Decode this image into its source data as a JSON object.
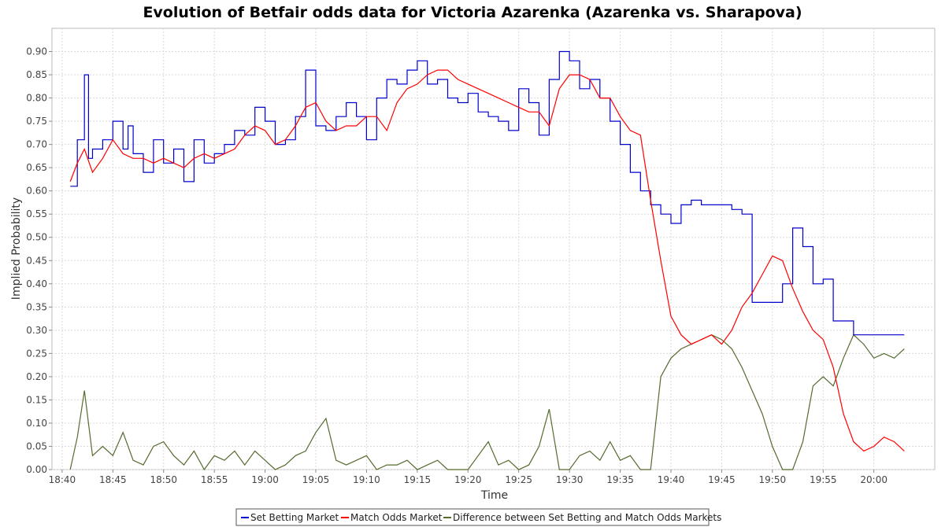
{
  "chart_data": {
    "type": "line",
    "title": "Evolution of Betfair odds data for Victoria Azarenka (Azarenka vs. Sharapova)",
    "xlabel": "Time",
    "ylabel": "Implied Probability",
    "x_ticks": [
      "18:40",
      "18:45",
      "18:50",
      "18:55",
      "19:00",
      "19:05",
      "19:10",
      "19:15",
      "19:20",
      "19:25",
      "19:30",
      "19:35",
      "19:40",
      "19:45",
      "19:50",
      "19:55",
      "20:00"
    ],
    "x_range_minutes": [
      -1.0,
      86.0
    ],
    "ylim": [
      0.0,
      0.95
    ],
    "y_ticks": [
      0.0,
      0.05,
      0.1,
      0.15,
      0.2,
      0.25,
      0.3,
      0.35,
      0.4,
      0.45,
      0.5,
      0.55,
      0.6,
      0.65,
      0.7,
      0.75,
      0.8,
      0.85,
      0.9
    ],
    "grid": true,
    "legend_position": "bottom",
    "series": [
      {
        "name": "Set Betting Market",
        "color": "#0000cc",
        "step": true,
        "x": [
          0.8,
          1.5,
          2.2,
          2.6,
          3,
          4,
          5,
          6,
          6.5,
          7,
          8,
          9,
          10,
          11,
          12,
          13,
          14,
          15,
          16,
          17,
          18,
          19,
          20,
          21,
          22,
          23,
          24,
          25,
          26,
          27,
          28,
          29,
          30,
          31,
          32,
          33,
          34,
          35,
          36,
          37,
          38,
          39,
          40,
          41,
          42,
          43,
          44,
          45,
          46,
          47,
          48,
          49,
          50,
          51,
          52,
          53,
          54,
          55,
          56,
          57,
          58,
          59,
          60,
          61,
          62,
          63,
          64,
          65,
          66,
          67,
          68,
          69,
          70,
          71,
          72,
          73,
          74,
          75,
          76,
          77,
          78,
          79,
          80,
          81,
          82,
          83
        ],
        "y": [
          0.61,
          0.71,
          0.85,
          0.67,
          0.69,
          0.71,
          0.75,
          0.69,
          0.74,
          0.68,
          0.64,
          0.71,
          0.66,
          0.69,
          0.62,
          0.71,
          0.66,
          0.68,
          0.7,
          0.73,
          0.72,
          0.78,
          0.75,
          0.7,
          0.71,
          0.76,
          0.86,
          0.74,
          0.73,
          0.76,
          0.79,
          0.76,
          0.71,
          0.8,
          0.84,
          0.83,
          0.86,
          0.88,
          0.83,
          0.84,
          0.8,
          0.79,
          0.81,
          0.77,
          0.76,
          0.75,
          0.73,
          0.82,
          0.79,
          0.72,
          0.84,
          0.9,
          0.88,
          0.82,
          0.84,
          0.8,
          0.75,
          0.7,
          0.64,
          0.6,
          0.57,
          0.55,
          0.53,
          0.57,
          0.58,
          0.57,
          0.57,
          0.57,
          0.56,
          0.55,
          0.36,
          0.36,
          0.36,
          0.4,
          0.52,
          0.48,
          0.4,
          0.41,
          0.32,
          0.32,
          0.29,
          0.29,
          0.29,
          0.29,
          0.29,
          0.29
        ]
      },
      {
        "name": "Match Odds Market",
        "color": "#ff0000",
        "step": false,
        "x": [
          0.8,
          1.5,
          2.2,
          3,
          4,
          5,
          6,
          7,
          8,
          9,
          10,
          11,
          12,
          13,
          14,
          15,
          16,
          17,
          18,
          19,
          20,
          21,
          22,
          23,
          24,
          25,
          26,
          27,
          28,
          29,
          30,
          31,
          32,
          33,
          34,
          35,
          36,
          37,
          38,
          39,
          40,
          41,
          42,
          43,
          44,
          45,
          46,
          47,
          48,
          49,
          50,
          51,
          52,
          53,
          54,
          55,
          56,
          57,
          58,
          59,
          60,
          61,
          62,
          63,
          64,
          65,
          66,
          67,
          68,
          69,
          70,
          71,
          72,
          73,
          74,
          75,
          76,
          77,
          78,
          79,
          80,
          81,
          82,
          83
        ],
        "y": [
          0.62,
          0.66,
          0.69,
          0.64,
          0.67,
          0.71,
          0.68,
          0.67,
          0.67,
          0.66,
          0.67,
          0.66,
          0.65,
          0.67,
          0.68,
          0.67,
          0.68,
          0.69,
          0.72,
          0.74,
          0.73,
          0.7,
          0.71,
          0.74,
          0.78,
          0.79,
          0.75,
          0.73,
          0.74,
          0.74,
          0.76,
          0.76,
          0.73,
          0.79,
          0.82,
          0.83,
          0.85,
          0.86,
          0.86,
          0.84,
          0.83,
          0.82,
          0.81,
          0.8,
          0.79,
          0.78,
          0.77,
          0.77,
          0.74,
          0.82,
          0.85,
          0.85,
          0.84,
          0.8,
          0.8,
          0.76,
          0.73,
          0.72,
          0.58,
          0.45,
          0.33,
          0.29,
          0.27,
          0.28,
          0.29,
          0.27,
          0.3,
          0.35,
          0.38,
          0.42,
          0.46,
          0.45,
          0.39,
          0.34,
          0.3,
          0.28,
          0.22,
          0.12,
          0.06,
          0.04,
          0.05,
          0.07,
          0.06,
          0.04
        ]
      },
      {
        "name": "Difference between Set Betting and Match Odds Markets",
        "color": "#556b2f",
        "step": false,
        "x": [
          0.8,
          1.5,
          2.2,
          3,
          4,
          5,
          6,
          7,
          8,
          9,
          10,
          11,
          12,
          13,
          14,
          15,
          16,
          17,
          18,
          19,
          20,
          21,
          22,
          23,
          24,
          25,
          26,
          27,
          28,
          29,
          30,
          31,
          32,
          33,
          34,
          35,
          36,
          37,
          38,
          39,
          40,
          41,
          42,
          43,
          44,
          45,
          46,
          47,
          48,
          49,
          50,
          51,
          52,
          53,
          54,
          55,
          56,
          57,
          58,
          59,
          60,
          61,
          62,
          63,
          64,
          65,
          66,
          67,
          68,
          69,
          70,
          71,
          72,
          73,
          74,
          75,
          76,
          77,
          78,
          79,
          80,
          81,
          82,
          83
        ],
        "y": [
          0.0,
          0.07,
          0.17,
          0.03,
          0.05,
          0.03,
          0.08,
          0.02,
          0.01,
          0.05,
          0.06,
          0.03,
          0.01,
          0.04,
          0.0,
          0.03,
          0.02,
          0.04,
          0.01,
          0.04,
          0.02,
          0.0,
          0.01,
          0.03,
          0.04,
          0.08,
          0.11,
          0.02,
          0.01,
          0.02,
          0.03,
          0.0,
          0.01,
          0.01,
          0.02,
          0.0,
          0.01,
          0.02,
          0.0,
          0.0,
          0.0,
          0.03,
          0.06,
          0.01,
          0.02,
          0.0,
          0.01,
          0.05,
          0.13,
          0.0,
          0.0,
          0.03,
          0.04,
          0.02,
          0.06,
          0.02,
          0.03,
          0.0,
          0.0,
          0.2,
          0.24,
          0.26,
          0.27,
          0.28,
          0.29,
          0.28,
          0.26,
          0.22,
          0.17,
          0.12,
          0.05,
          0.0,
          0.0,
          0.06,
          0.18,
          0.2,
          0.18,
          0.24,
          0.29,
          0.27,
          0.24,
          0.25,
          0.24,
          0.26
        ]
      }
    ]
  }
}
